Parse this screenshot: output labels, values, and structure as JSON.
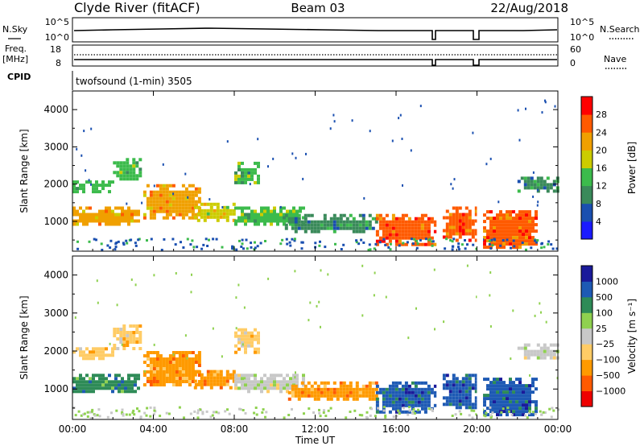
{
  "header": {
    "station": "Clyde River (fitACF)",
    "beam": "Beam 03",
    "date": "22/Aug/2018"
  },
  "top_panel": {
    "left_label": "N.Sky",
    "right_label": "N.Search",
    "left_ticks": [
      "10^5",
      "10^0"
    ],
    "right_ticks": [
      "10^5",
      "10^0"
    ]
  },
  "freq_panel": {
    "left_label": "Freq.",
    "left_unit": "[MHz]",
    "right_label": "Nave",
    "left_ticks": [
      "18",
      "8"
    ],
    "right_ticks": [
      "60",
      "0"
    ]
  },
  "cpid": {
    "label": "CPID",
    "text": "twofsound (1-min) 3505"
  },
  "colors": {
    "power": [
      "#1a1aff",
      "#1a4fb0",
      "#3a8a5a",
      "#3cbb4c",
      "#cccc00",
      "#f0a000",
      "#ff5a00",
      "#ff0000"
    ],
    "velocity": [
      "#ee0000",
      "#ff5a00",
      "#ff9a00",
      "#ffcc66",
      "#c8c8c8",
      "#8fd14f",
      "#2e8b57",
      "#1e5ab4",
      "#1a1a9a"
    ]
  },
  "chart_data": [
    {
      "type": "heatmap",
      "title": "",
      "xlabel": "Time UT",
      "ylabel": "Slant Range [km]",
      "x_ticks": [
        "00:00",
        "04:00",
        "08:00",
        "12:00",
        "16:00",
        "20:00",
        "00:00"
      ],
      "y_ticks": [
        "1000",
        "2000",
        "3000",
        "4000"
      ],
      "ylim": [
        200,
        4500
      ],
      "colorbar": {
        "label": "Power [dB]",
        "ticks": [
          "4",
          "8",
          "12",
          "16",
          "20",
          "24",
          "28"
        ],
        "range": [
          0,
          30
        ]
      },
      "echo_regions": [
        {
          "t": [
            0.0,
            3.2
          ],
          "r": [
            900,
            1400
          ],
          "level": 20
        },
        {
          "t": [
            0.0,
            2.0
          ],
          "r": [
            1800,
            2100
          ],
          "level": 12
        },
        {
          "t": [
            2.0,
            3.3
          ],
          "r": [
            2100,
            2700
          ],
          "level": 12
        },
        {
          "t": [
            3.5,
            6.3
          ],
          "r": [
            1100,
            2000
          ],
          "level": 22
        },
        {
          "t": [
            6.0,
            8.0
          ],
          "r": [
            1000,
            1500
          ],
          "level": 16
        },
        {
          "t": [
            8.0,
            9.2
          ],
          "r": [
            2000,
            2600
          ],
          "level": 14
        },
        {
          "t": [
            8.0,
            11.5
          ],
          "r": [
            900,
            1400
          ],
          "level": 12
        },
        {
          "t": [
            10.5,
            15.0
          ],
          "r": [
            700,
            1200
          ],
          "level": 8
        },
        {
          "t": [
            15.0,
            18.0
          ],
          "r": [
            400,
            1200
          ],
          "level": 26
        },
        {
          "t": [
            18.3,
            20.0
          ],
          "r": [
            500,
            1400
          ],
          "level": 24
        },
        {
          "t": [
            20.3,
            23.0
          ],
          "r": [
            300,
            1300
          ],
          "level": 26
        },
        {
          "t": [
            22.0,
            24.0
          ],
          "r": [
            1800,
            2200
          ],
          "level": 10
        }
      ]
    },
    {
      "type": "heatmap",
      "title": "",
      "xlabel": "Time UT",
      "ylabel": "Slant Range [km]",
      "x_ticks": [
        "00:00",
        "04:00",
        "08:00",
        "12:00",
        "16:00",
        "20:00",
        "00:00"
      ],
      "y_ticks": [
        "1000",
        "2000",
        "3000",
        "4000"
      ],
      "ylim": [
        200,
        4500
      ],
      "colorbar": {
        "label": "Velocity [m s⁻¹]",
        "ticks": [
          "1000",
          "500",
          "100",
          "25",
          "−25",
          "−100",
          "−500",
          "−1000"
        ],
        "range": [
          -1200,
          1200
        ]
      },
      "echo_regions": [
        {
          "t": [
            0.0,
            3.2
          ],
          "r": [
            900,
            1400
          ],
          "level": 150
        },
        {
          "t": [
            0.0,
            2.0
          ],
          "r": [
            1800,
            2100
          ],
          "level": -60
        },
        {
          "t": [
            2.0,
            3.3
          ],
          "r": [
            2100,
            2700
          ],
          "level": -80
        },
        {
          "t": [
            3.5,
            6.3
          ],
          "r": [
            1100,
            2000
          ],
          "level": -150
        },
        {
          "t": [
            6.0,
            8.0
          ],
          "r": [
            1000,
            1500
          ],
          "level": -200
        },
        {
          "t": [
            8.0,
            9.2
          ],
          "r": [
            2000,
            2600
          ],
          "level": -60
        },
        {
          "t": [
            8.0,
            11.5
          ],
          "r": [
            900,
            1400
          ],
          "level": 0
        },
        {
          "t": [
            10.5,
            15.0
          ],
          "r": [
            700,
            1200
          ],
          "level": -120
        },
        {
          "t": [
            15.0,
            18.0
          ],
          "r": [
            400,
            1200
          ],
          "level": 700
        },
        {
          "t": [
            18.3,
            20.0
          ],
          "r": [
            500,
            1400
          ],
          "level": 600
        },
        {
          "t": [
            20.3,
            23.0
          ],
          "r": [
            300,
            1300
          ],
          "level": 700
        },
        {
          "t": [
            22.0,
            24.0
          ],
          "r": [
            1800,
            2200
          ],
          "level": 0
        }
      ]
    }
  ]
}
